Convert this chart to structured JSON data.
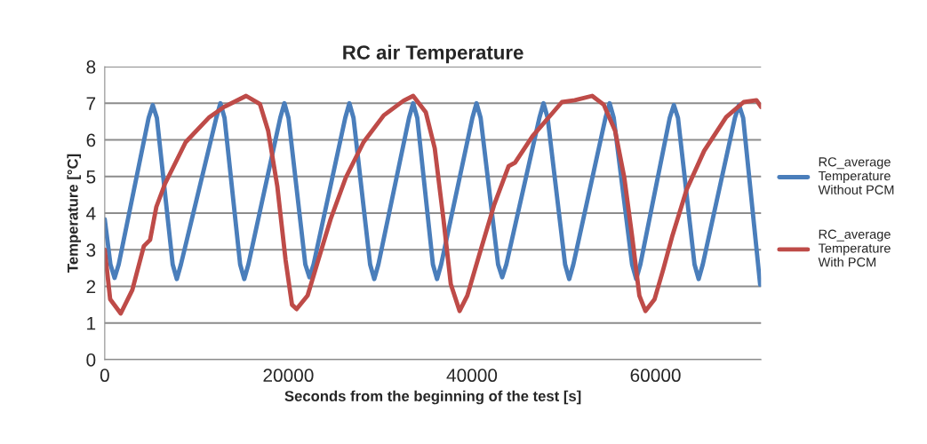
{
  "chart_data": {
    "type": "line",
    "title": "RC air Temperature",
    "xlabel": "Seconds from the beginning of the test [s]",
    "ylabel": "Temperature [°C]",
    "xlim": [
      0,
      71500
    ],
    "xticks": [
      0,
      20000,
      40000,
      60000
    ],
    "ylim": [
      0,
      8
    ],
    "yticks": [
      0,
      1,
      2,
      3,
      4,
      5,
      6,
      7,
      8
    ],
    "grid": "y",
    "legend": "right",
    "marker": "none",
    "line_style": "solid",
    "series": [
      {
        "name": "RC_average\nTemperature\nWithout PCM",
        "color": "#4a7ebb",
        "x": [
          0,
          620,
          1070,
          1520,
          4780,
          5230,
          5680,
          7400,
          7850,
          8300,
          12150,
          12600,
          13050,
          14750,
          15200,
          15650,
          19120,
          19570,
          20020,
          21850,
          22300,
          22750,
          26200,
          26650,
          27100,
          28910,
          29360,
          29810,
          33150,
          33600,
          34050,
          35750,
          36200,
          36650,
          40050,
          40500,
          40950,
          42850,
          43300,
          43750,
          47350,
          47800,
          48250,
          50150,
          50600,
          51050,
          54550,
          55000,
          55450,
          57450,
          57900,
          58350,
          61550,
          62000,
          62450,
          64250,
          64700,
          65150,
          68650,
          69100,
          69550,
          71400
        ],
        "values": [
          3.83,
          2.6,
          2.23,
          2.6,
          6.6,
          6.95,
          6.6,
          2.6,
          2.2,
          2.6,
          6.6,
          7.0,
          6.6,
          2.6,
          2.2,
          2.6,
          6.6,
          7.0,
          6.6,
          2.6,
          2.25,
          2.6,
          6.6,
          7.0,
          6.6,
          2.6,
          2.2,
          2.6,
          6.6,
          7.0,
          6.6,
          2.6,
          2.2,
          2.6,
          6.6,
          7.0,
          6.6,
          2.6,
          2.25,
          2.6,
          6.6,
          7.0,
          6.6,
          2.6,
          2.2,
          2.6,
          6.6,
          7.0,
          6.6,
          2.6,
          2.2,
          2.6,
          6.6,
          6.95,
          6.6,
          2.6,
          2.2,
          2.6,
          6.6,
          6.95,
          6.6,
          2.05
        ]
      },
      {
        "name": "RC_average\nTemperature\nWith PCM",
        "color": "#be4b48",
        "x": [
          0,
          590,
          1740,
          3000,
          4260,
          4940,
          5620,
          6560,
          8820,
          11400,
          13000,
          15400,
          16900,
          17800,
          18800,
          19700,
          20400,
          20900,
          22100,
          23060,
          24600,
          26260,
          28200,
          30400,
          32560,
          33600,
          34980,
          35950,
          36900,
          37700,
          38660,
          39500,
          40800,
          42440,
          44000,
          44700,
          46600,
          48800,
          49800,
          51200,
          53100,
          54360,
          55600,
          56600,
          57460,
          58240,
          58900,
          59900,
          60850,
          61800,
          63400,
          65300,
          67700,
          69600,
          71000,
          71500
        ],
        "values": [
          3.0,
          1.65,
          1.26,
          1.9,
          3.1,
          3.27,
          4.17,
          4.8,
          5.94,
          6.62,
          6.9,
          7.2,
          6.98,
          6.25,
          4.73,
          2.72,
          1.5,
          1.38,
          1.75,
          2.55,
          3.83,
          4.97,
          5.94,
          6.67,
          7.07,
          7.2,
          6.75,
          5.77,
          3.83,
          2.06,
          1.33,
          1.75,
          2.86,
          4.24,
          5.28,
          5.38,
          6.1,
          6.74,
          7.03,
          7.08,
          7.2,
          6.96,
          6.25,
          4.97,
          3.35,
          1.75,
          1.33,
          1.65,
          2.47,
          3.35,
          4.65,
          5.7,
          6.62,
          7.03,
          7.08,
          6.9
        ]
      }
    ]
  }
}
